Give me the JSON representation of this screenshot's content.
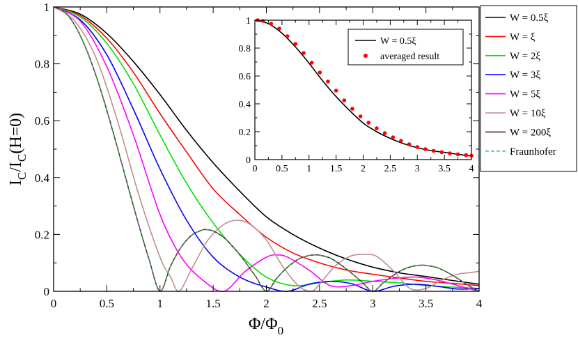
{
  "chart_data": [
    {
      "type": "line",
      "title": "",
      "xlabel": "Φ/Φ",
      "xlabel_sub": "0",
      "ylabel_parts": [
        "I",
        "C",
        "/I",
        "C",
        "(H=0)"
      ],
      "xlim": [
        0,
        4
      ],
      "ylim": [
        0,
        1
      ],
      "xticks": [
        "0",
        "0.5",
        "1",
        "1.5",
        "2",
        "2.5",
        "3",
        "3.5",
        "4"
      ],
      "yticks": [
        "0",
        "0.2",
        "0.4",
        "0.6",
        "0.8",
        "1"
      ],
      "legend_position": "outside-right",
      "series": [
        {
          "name": "W = 0.5ξ",
          "color": "#000000",
          "dash": "solid",
          "x": [
            0,
            0.25,
            0.5,
            0.75,
            1.0,
            1.25,
            1.5,
            1.75,
            2.0,
            2.25,
            2.5,
            2.75,
            3.0,
            3.25,
            3.5,
            3.75,
            4.0
          ],
          "y": [
            1.0,
            0.975,
            0.907,
            0.808,
            0.692,
            0.566,
            0.452,
            0.352,
            0.262,
            0.2,
            0.152,
            0.114,
            0.085,
            0.065,
            0.052,
            0.038,
            0.025
          ]
        },
        {
          "name": "W = ξ",
          "color": "#ff0000",
          "dash": "solid",
          "x": [
            0,
            0.25,
            0.5,
            0.75,
            1.0,
            1.25,
            1.5,
            1.75,
            2.0,
            2.25,
            2.5,
            2.75,
            3.0,
            3.25,
            3.5,
            3.75,
            4.0
          ],
          "y": [
            1.0,
            0.97,
            0.89,
            0.77,
            0.625,
            0.49,
            0.36,
            0.27,
            0.19,
            0.135,
            0.1,
            0.075,
            0.06,
            0.047,
            0.035,
            0.028,
            0.02
          ]
        },
        {
          "name": "W = 2ξ",
          "color": "#00e000",
          "dash": "solid",
          "x": [
            0,
            0.25,
            0.5,
            0.75,
            1.0,
            1.25,
            1.5,
            1.75,
            2.0,
            2.25,
            2.5,
            2.75,
            3.0,
            3.25,
            3.5,
            3.75,
            4.0
          ],
          "y": [
            1.0,
            0.965,
            0.872,
            0.73,
            0.55,
            0.38,
            0.24,
            0.13,
            0.05,
            0.02,
            0.03,
            0.04,
            0.035,
            0.03,
            0.02,
            0.015,
            0.01
          ]
        },
        {
          "name": "W = 3ξ",
          "color": "#0000ff",
          "dash": "solid",
          "x": [
            0,
            0.25,
            0.5,
            0.75,
            1.0,
            1.25,
            1.5,
            1.75,
            2.0,
            2.2,
            2.4,
            2.6,
            2.8,
            3.0,
            3.2,
            3.4,
            3.6,
            3.8,
            4.0
          ],
          "y": [
            1.0,
            0.955,
            0.832,
            0.64,
            0.43,
            0.25,
            0.12,
            0.05,
            0.015,
            0.0,
            0.025,
            0.035,
            0.027,
            0.0,
            0.018,
            0.025,
            0.018,
            0.008,
            0.01
          ]
        },
        {
          "name": "W = 5ξ",
          "color": "#ff00ff",
          "dash": "solid",
          "x": [
            0,
            0.25,
            0.5,
            0.75,
            1.0,
            1.2,
            1.4,
            1.6,
            1.8,
            2.0,
            2.1,
            2.2,
            2.4,
            2.6,
            2.8,
            3.0,
            3.2,
            3.4,
            3.6,
            3.8,
            4.0
          ],
          "y": [
            1.0,
            0.95,
            0.79,
            0.55,
            0.27,
            0.12,
            0.04,
            0.0,
            0.07,
            0.12,
            0.128,
            0.12,
            0.075,
            0.02,
            0.02,
            0.035,
            0.045,
            0.05,
            0.04,
            0.02,
            0.0
          ]
        },
        {
          "name": "W = 10ξ",
          "color": "#bc8f8f",
          "dash": "solid",
          "x": [
            0,
            0.2,
            0.4,
            0.6,
            0.8,
            1.0,
            1.1,
            1.18,
            1.3,
            1.45,
            1.6,
            1.73,
            1.85,
            2.0,
            2.15,
            2.3,
            2.42,
            2.5,
            2.65,
            2.8,
            2.95,
            3.05,
            3.2,
            3.35,
            3.5,
            3.65,
            3.8,
            3.9,
            4.0
          ],
          "y": [
            1.0,
            0.95,
            0.82,
            0.6,
            0.34,
            0.12,
            0.05,
            0.0,
            0.08,
            0.18,
            0.235,
            0.25,
            0.235,
            0.18,
            0.09,
            0.02,
            0.0,
            0.025,
            0.09,
            0.125,
            0.13,
            0.12,
            0.07,
            0.01,
            0.01,
            0.04,
            0.06,
            0.065,
            0.07
          ]
        },
        {
          "name": "W = 200ξ",
          "color": "#5c1a5c",
          "dash": "solid",
          "x": [
            0,
            0.1,
            0.2,
            0.3,
            0.4,
            0.5,
            0.6,
            0.7,
            0.8,
            0.9,
            1.0,
            1.1,
            1.2,
            1.3,
            1.4,
            1.43,
            1.5,
            1.6,
            1.7,
            1.8,
            1.9,
            2.0,
            2.1,
            2.2,
            2.3,
            2.4,
            2.46,
            2.5,
            2.6,
            2.7,
            2.8,
            2.9,
            3.0,
            3.1,
            3.2,
            3.3,
            3.4,
            3.47,
            3.5,
            3.6,
            3.7,
            3.8,
            3.9,
            4.0
          ],
          "y": [
            1.0,
            0.984,
            0.935,
            0.858,
            0.757,
            0.637,
            0.505,
            0.368,
            0.234,
            0.109,
            0.0,
            0.089,
            0.156,
            0.198,
            0.216,
            0.217,
            0.212,
            0.189,
            0.151,
            0.104,
            0.052,
            0.0,
            0.047,
            0.085,
            0.113,
            0.126,
            0.128,
            0.127,
            0.117,
            0.093,
            0.064,
            0.032,
            0.0,
            0.03,
            0.058,
            0.079,
            0.09,
            0.092,
            0.091,
            0.084,
            0.067,
            0.045,
            0.02,
            0.0
          ]
        },
        {
          "name": "Fraunhofer",
          "color": "#33aa33",
          "dash": "dashed",
          "x": [
            0,
            0.1,
            0.2,
            0.3,
            0.4,
            0.5,
            0.6,
            0.7,
            0.8,
            0.9,
            1.0,
            1.1,
            1.2,
            1.3,
            1.4,
            1.43,
            1.5,
            1.6,
            1.7,
            1.8,
            1.9,
            2.0,
            2.1,
            2.2,
            2.3,
            2.4,
            2.46,
            2.5,
            2.6,
            2.7,
            2.8,
            2.9,
            3.0,
            3.1,
            3.2,
            3.3,
            3.4,
            3.47,
            3.5,
            3.6,
            3.7,
            3.8,
            3.9,
            4.0
          ],
          "y": [
            1.0,
            0.984,
            0.935,
            0.858,
            0.757,
            0.637,
            0.505,
            0.368,
            0.234,
            0.109,
            0.0,
            0.089,
            0.156,
            0.198,
            0.216,
            0.217,
            0.212,
            0.189,
            0.151,
            0.104,
            0.052,
            0.0,
            0.047,
            0.085,
            0.113,
            0.126,
            0.128,
            0.127,
            0.117,
            0.093,
            0.064,
            0.032,
            0.0,
            0.03,
            0.058,
            0.079,
            0.09,
            0.092,
            0.091,
            0.084,
            0.067,
            0.045,
            0.02,
            0.0
          ]
        }
      ]
    },
    {
      "type": "line",
      "title": "",
      "role": "inset",
      "xlim": [
        0,
        4
      ],
      "ylim": [
        0,
        1
      ],
      "xticks": [
        "0",
        "0.5",
        "1",
        "1.5",
        "2",
        "2.5",
        "3",
        "3.5",
        "4"
      ],
      "yticks": [
        "0",
        "0.2",
        "0.4",
        "0.6",
        "0.8",
        "1"
      ],
      "legend_position": "top-right",
      "series": [
        {
          "name": "W = 0.5ξ",
          "color": "#000000",
          "kind": "line",
          "x": [
            0,
            0.25,
            0.5,
            0.75,
            1.0,
            1.25,
            1.5,
            1.75,
            2.0,
            2.25,
            2.5,
            2.75,
            3.0,
            3.25,
            3.5,
            3.75,
            4.0
          ],
          "y": [
            1.0,
            0.975,
            0.907,
            0.808,
            0.692,
            0.566,
            0.452,
            0.352,
            0.262,
            0.2,
            0.152,
            0.114,
            0.085,
            0.065,
            0.052,
            0.038,
            0.025
          ]
        },
        {
          "name": "averaged result",
          "color": "#ff0000",
          "kind": "points",
          "x": [
            0.05,
            0.15,
            0.3,
            0.45,
            0.6,
            0.75,
            0.9,
            1.05,
            1.2,
            1.35,
            1.5,
            1.65,
            1.8,
            1.95,
            2.1,
            2.25,
            2.4,
            2.55,
            2.7,
            2.85,
            3.0,
            3.15,
            3.3,
            3.45,
            3.6,
            3.75,
            3.9,
            4.0
          ],
          "y": [
            1.0,
            0.995,
            0.975,
            0.94,
            0.885,
            0.83,
            0.765,
            0.695,
            0.625,
            0.56,
            0.495,
            0.425,
            0.365,
            0.31,
            0.265,
            0.225,
            0.19,
            0.16,
            0.135,
            0.11,
            0.09,
            0.075,
            0.063,
            0.053,
            0.045,
            0.038,
            0.032,
            0.028
          ]
        }
      ]
    }
  ]
}
